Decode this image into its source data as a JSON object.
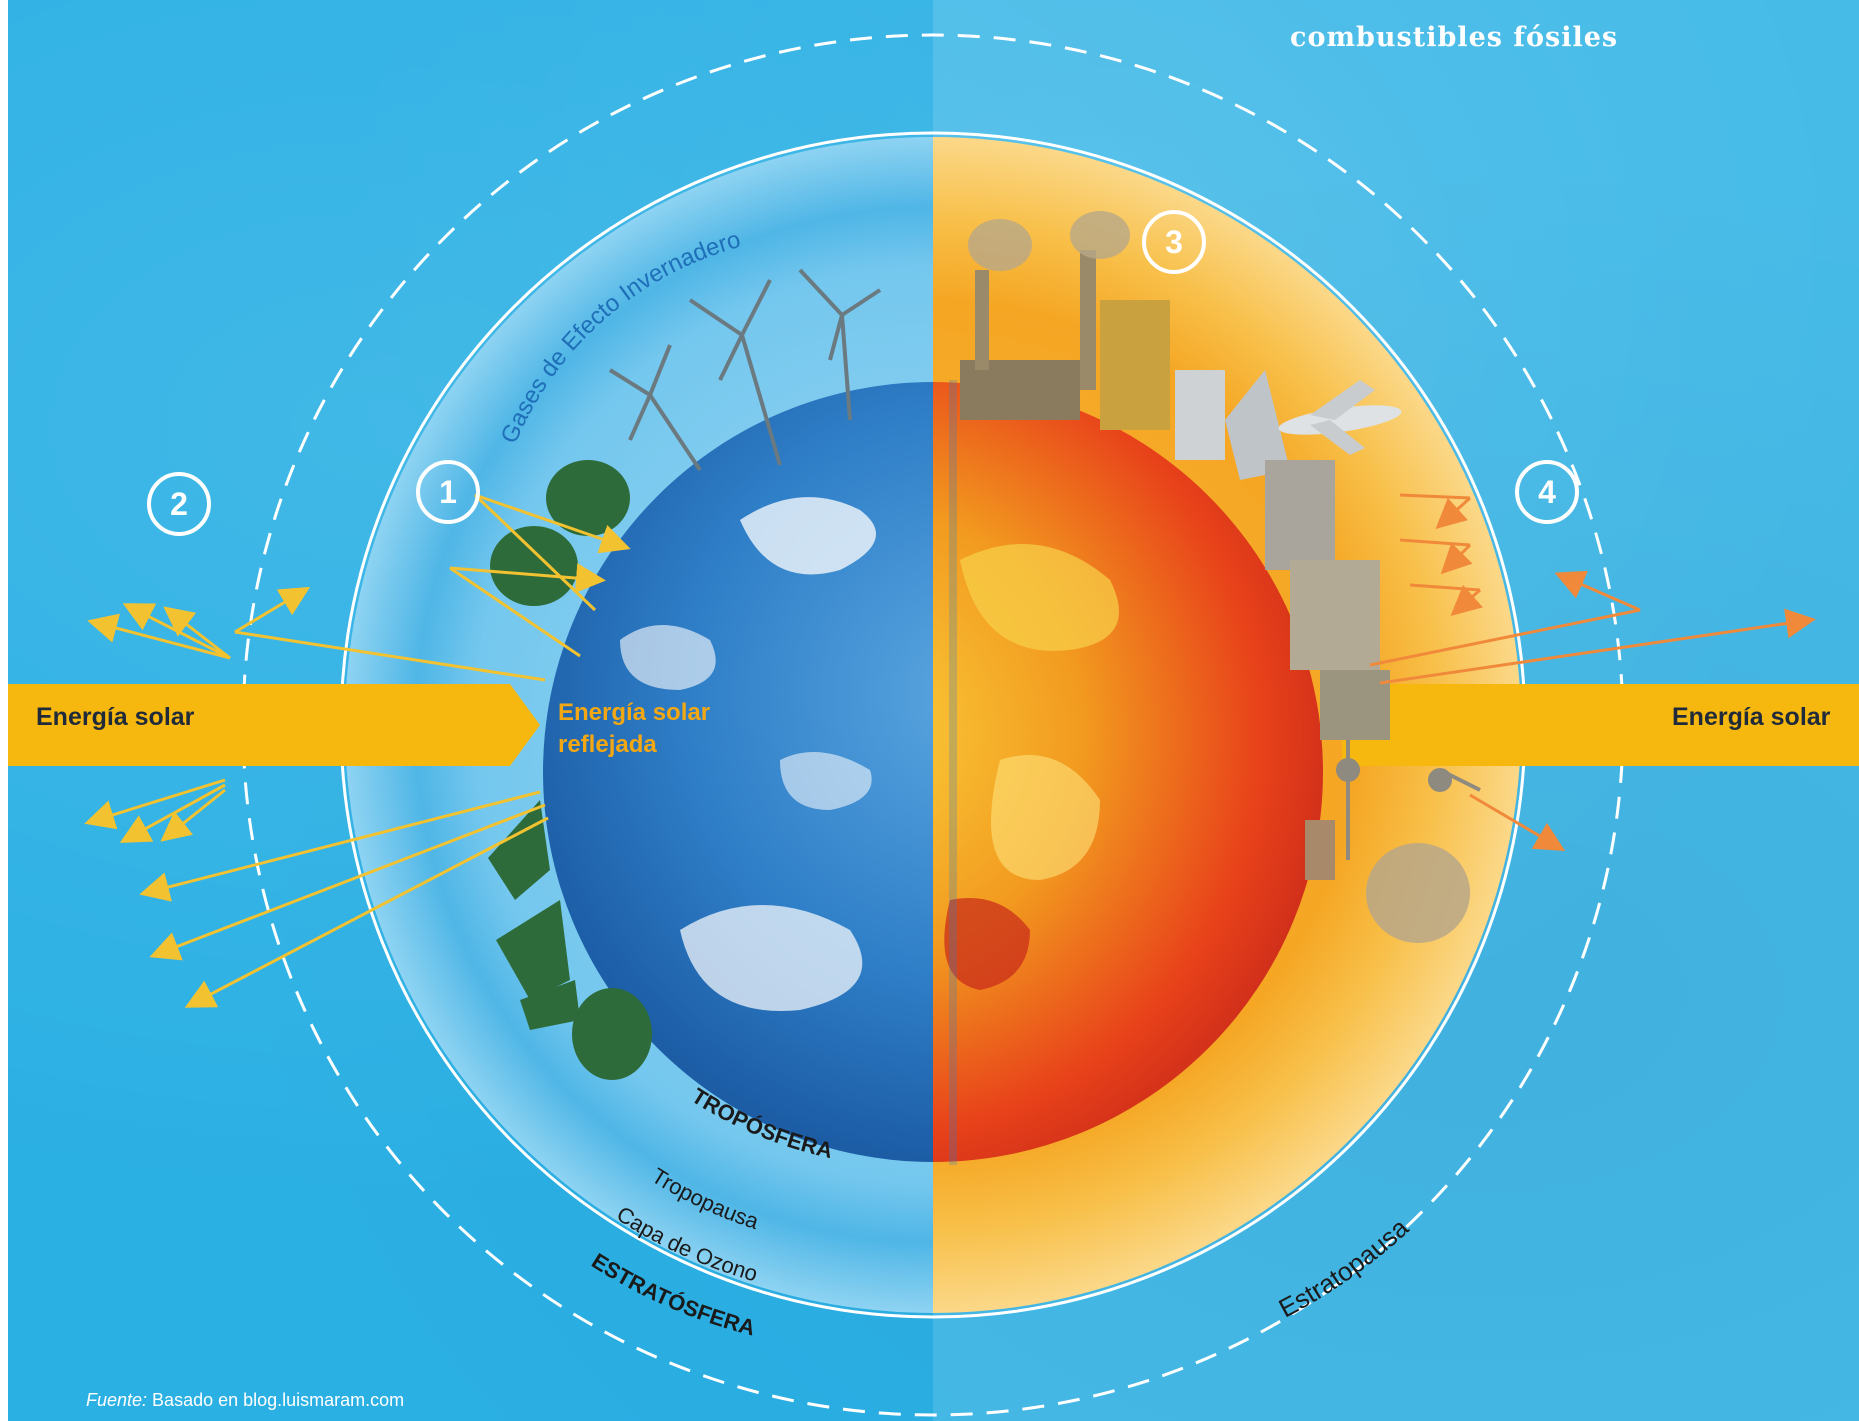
{
  "header": {
    "title": "combustibles fósiles"
  },
  "diagram": {
    "greenhouse_gases_label": "Gases de Efecto Invernadero",
    "solar_energy_left": "Energía solar",
    "solar_energy_right": "Energía solar",
    "reflected_solar_energy": "Energía solar reflejada",
    "troposphere": "TROPÓSFERA",
    "tropopause": "Tropopausa",
    "ozone_layer": "Capa de Ozono",
    "stratosphere": "ESTRATÓSFERA",
    "stratopause": "Estratopausa",
    "badges": [
      "1",
      "2",
      "3",
      "4"
    ]
  },
  "source": {
    "prefix": "Fuente:",
    "text": " Basado en blog.luismaram.com"
  },
  "colors": {
    "sky_blue": "#2bb0e4",
    "sky_blue_right": "#46bbe8",
    "solar_band": "#f6b80e",
    "earth_blue": "#2f7fc8",
    "earth_hot": "#e8421a",
    "hot_glow": "#f5a623",
    "arrow_yellow": "#f3c230",
    "arrow_orange": "#f0893a"
  },
  "icons": [
    "wind-turbine-icon",
    "tree-icon",
    "factory-chimney-icon",
    "skyscraper-icon",
    "airplane-icon",
    "tv-tower-icon"
  ]
}
